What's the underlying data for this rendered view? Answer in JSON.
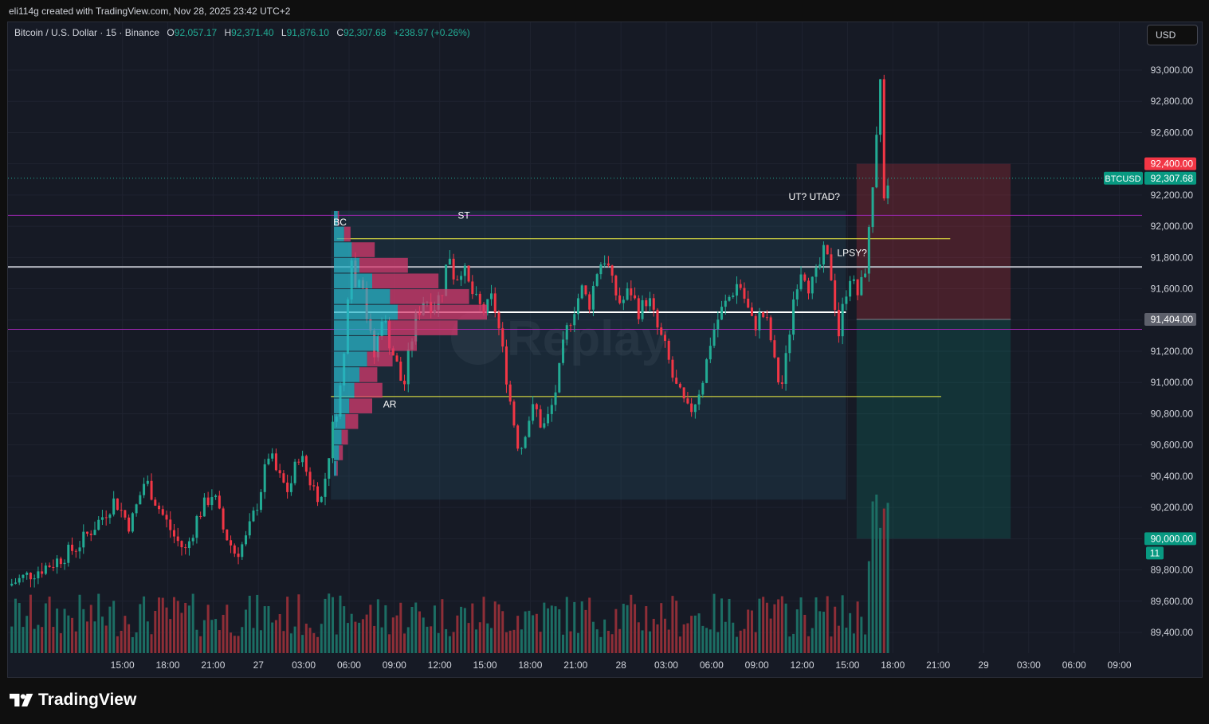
{
  "header": {
    "text": "eli114g created with TradingView.com, Nov 28, 2025 23:42 UTC+2"
  },
  "legend": {
    "symbol": "Bitcoin / U.S. Dollar · 15 · Binance",
    "open_label": "O",
    "open": "92,057.17",
    "high_label": "H",
    "high": "92,371.40",
    "low_label": "L",
    "low": "91,876.10",
    "close_label": "C",
    "close": "92,307.68",
    "change": "+238.97 (+0.26%)"
  },
  "currency_button": {
    "label": "USD"
  },
  "brand": {
    "name": "TradingView"
  },
  "colors": {
    "background": "#161a25",
    "up": "#22ab94",
    "down": "#f23645",
    "up_volume": "#1c6e64",
    "down_volume": "#8e2e37",
    "vp_up": "#2ab4c8",
    "vp_down": "#d63a6e",
    "purple_line": "#9c27b0",
    "yellow_line": "#f5f542",
    "white_line": "#e0e3eb"
  },
  "chart_data": {
    "type": "candlestick",
    "symbol": "BTCUSD",
    "interval": "15",
    "y_axis": {
      "range": [
        89250,
        93260
      ],
      "ticks": [
        "93,000.00",
        "92,800.00",
        "92,600.00",
        "92,400.00",
        "92,200.00",
        "92,000.00",
        "91,800.00",
        "91,600.00",
        "91,400.00",
        "91,200.00",
        "91,000.00",
        "90,800.00",
        "90,600.00",
        "90,400.00",
        "90,200.00",
        "90,000.00",
        "89,800.00",
        "89,600.00",
        "89,400.00"
      ],
      "tick_values": [
        93000,
        92800,
        92600,
        92400,
        92200,
        92000,
        91800,
        91600,
        91400,
        91200,
        91000,
        90800,
        90600,
        90400,
        90200,
        90000,
        89800,
        89600,
        89400
      ]
    },
    "x_axis": {
      "range_hours": [
        -16.58,
        58.5
      ],
      "ticks": [
        {
          "label": "15:00",
          "h": -9
        },
        {
          "label": "18:00",
          "h": -6
        },
        {
          "label": "21:00",
          "h": -3
        },
        {
          "label": "27",
          "h": 0
        },
        {
          "label": "03:00",
          "h": 3
        },
        {
          "label": "06:00",
          "h": 6
        },
        {
          "label": "09:00",
          "h": 9
        },
        {
          "label": "12:00",
          "h": 12
        },
        {
          "label": "15:00",
          "h": 15
        },
        {
          "label": "18:00",
          "h": 18
        },
        {
          "label": "21:00",
          "h": 21
        },
        {
          "label": "28",
          "h": 24
        },
        {
          "label": "03:00",
          "h": 27
        },
        {
          "label": "06:00",
          "h": 30
        },
        {
          "label": "09:00",
          "h": 33
        },
        {
          "label": "12:00",
          "h": 36
        },
        {
          "label": "15:00",
          "h": 39
        },
        {
          "label": "18:00",
          "h": 42
        },
        {
          "label": "21:00",
          "h": 45
        },
        {
          "label": "29",
          "h": 48
        },
        {
          "label": "03:00",
          "h": 51
        },
        {
          "label": "06:00",
          "h": 54
        },
        {
          "label": "09:00",
          "h": 57
        }
      ]
    },
    "price_path": [
      [
        -16.58,
        89700
      ],
      [
        -15,
        89780
      ],
      [
        -13.5,
        89850
      ],
      [
        -12,
        89950
      ],
      [
        -10.5,
        90120
      ],
      [
        -9.5,
        90250
      ],
      [
        -8.5,
        90080
      ],
      [
        -7.5,
        90380
      ],
      [
        -6.5,
        90180
      ],
      [
        -5.5,
        90000
      ],
      [
        -4.8,
        89920
      ],
      [
        -4,
        90150
      ],
      [
        -3,
        90300
      ],
      [
        -2.3,
        90050
      ],
      [
        -1.5,
        89900
      ],
      [
        -0.8,
        90000
      ],
      [
        0,
        90250
      ],
      [
        0.7,
        90550
      ],
      [
        1.3,
        90400
      ],
      [
        2,
        90300
      ],
      [
        2.7,
        90550
      ],
      [
        3.5,
        90350
      ],
      [
        4.2,
        90250
      ],
      [
        4.9,
        90700
      ],
      [
        5.4,
        90950
      ],
      [
        5.7,
        91200
      ],
      [
        6.1,
        91900
      ],
      [
        6.4,
        91600
      ],
      [
        6.8,
        91750
      ],
      [
        7.2,
        91400
      ],
      [
        7.7,
        91150
      ],
      [
        8.2,
        91450
      ],
      [
        8.7,
        91250
      ],
      [
        9.2,
        91100
      ],
      [
        9.6,
        90950
      ],
      [
        9.9,
        91150
      ],
      [
        10.4,
        91400
      ],
      [
        11,
        91550
      ],
      [
        11.6,
        91480
      ],
      [
        12.2,
        91600
      ],
      [
        12.6,
        91850
      ],
      [
        13,
        91650
      ],
      [
        13.5,
        91750
      ],
      [
        14,
        91600
      ],
      [
        14.5,
        91500
      ],
      [
        15,
        91450
      ],
      [
        15.5,
        91550
      ],
      [
        16,
        91300
      ],
      [
        16.4,
        91050
      ],
      [
        16.8,
        90800
      ],
      [
        17.3,
        90550
      ],
      [
        17.8,
        90750
      ],
      [
        18.3,
        90850
      ],
      [
        18.8,
        90700
      ],
      [
        19.3,
        90800
      ],
      [
        19.8,
        91000
      ],
      [
        20.3,
        91300
      ],
      [
        20.8,
        91450
      ],
      [
        21.4,
        91600
      ],
      [
        21.9,
        91500
      ],
      [
        22.5,
        91750
      ],
      [
        23,
        91800
      ],
      [
        23.5,
        91600
      ],
      [
        24,
        91500
      ],
      [
        24.6,
        91600
      ],
      [
        25.2,
        91450
      ],
      [
        25.8,
        91550
      ],
      [
        26.4,
        91350
      ],
      [
        27,
        91200
      ],
      [
        27.5,
        91000
      ],
      [
        28,
        90900
      ],
      [
        28.5,
        90800
      ],
      [
        29,
        90900
      ],
      [
        29.5,
        91050
      ],
      [
        30,
        91300
      ],
      [
        30.6,
        91450
      ],
      [
        31.2,
        91550
      ],
      [
        31.8,
        91650
      ],
      [
        32.3,
        91500
      ],
      [
        32.8,
        91350
      ],
      [
        33.3,
        91450
      ],
      [
        33.8,
        91350
      ],
      [
        34.2,
        91100
      ],
      [
        34.6,
        90950
      ],
      [
        35,
        91200
      ],
      [
        35.5,
        91600
      ],
      [
        36,
        91750
      ],
      [
        36.5,
        91600
      ],
      [
        37,
        91700
      ],
      [
        37.5,
        91850
      ],
      [
        38,
        91650
      ],
      [
        38.4,
        91300
      ],
      [
        38.8,
        91550
      ],
      [
        39.2,
        91700
      ],
      [
        39.6,
        91550
      ],
      [
        40,
        91650
      ],
      [
        40.3,
        91800
      ],
      [
        40.6,
        92200
      ],
      [
        40.9,
        92550
      ],
      [
        41.2,
        92990
      ],
      [
        41.45,
        92100
      ],
      [
        41.6,
        92250
      ],
      [
        41.7,
        92307
      ]
    ],
    "last_price_label": "BTCUSD",
    "last_price": "92,307.68",
    "last_price_value": 92307.68,
    "levels": {
      "purple_upper": 92070,
      "purple_lower": 91340,
      "white_upper": 91740,
      "white_lower": 91450,
      "yellow_upper": 91920,
      "yellow_lower": 90910
    },
    "range_box": {
      "from_h": 4.8,
      "to_h": 38.9,
      "top": 92100,
      "bottom": 90250
    },
    "position": {
      "from_h": 39.6,
      "to_h": 49.8,
      "stop": 92400,
      "entry": 91404,
      "target": 90000,
      "stop_label": "92,400.00",
      "entry_label": "91,404.00",
      "target_label": "90,000.00",
      "qty_label": "11"
    },
    "annotations": [
      {
        "text": "BC",
        "h": 5.4,
        "price": 92005
      },
      {
        "text": "ST",
        "h": 13.6,
        "price": 92050
      },
      {
        "text": "AR",
        "h": 8.7,
        "price": 90840
      },
      {
        "text": "UT? UTAD?",
        "h": 36.8,
        "price": 92170
      },
      {
        "text": "LPSY?",
        "h": 39.3,
        "price": 91810
      }
    ],
    "volume_profile": {
      "anchor_h": 5.0,
      "rows": [
        {
          "low": 92000,
          "high": 92100,
          "up": 3,
          "down": 1
        },
        {
          "low": 91900,
          "high": 92000,
          "up": 8,
          "down": 5
        },
        {
          "low": 91800,
          "high": 91900,
          "up": 14,
          "down": 18
        },
        {
          "low": 91700,
          "high": 91800,
          "up": 20,
          "down": 38
        },
        {
          "low": 91600,
          "high": 91700,
          "up": 30,
          "down": 52
        },
        {
          "low": 91500,
          "high": 91600,
          "up": 44,
          "down": 62
        },
        {
          "low": 91400,
          "high": 91500,
          "up": 50,
          "down": 70
        },
        {
          "low": 91300,
          "high": 91400,
          "up": 42,
          "down": 55
        },
        {
          "low": 91200,
          "high": 91300,
          "up": 35,
          "down": 30
        },
        {
          "low": 91100,
          "high": 91200,
          "up": 26,
          "down": 20
        },
        {
          "low": 91000,
          "high": 91100,
          "up": 20,
          "down": 14
        },
        {
          "low": 90900,
          "high": 91000,
          "up": 16,
          "down": 22
        },
        {
          "low": 90800,
          "high": 90900,
          "up": 12,
          "down": 18
        },
        {
          "low": 90700,
          "high": 90800,
          "up": 9,
          "down": 10
        },
        {
          "low": 90600,
          "high": 90700,
          "up": 6,
          "down": 5
        },
        {
          "low": 90500,
          "high": 90600,
          "up": 4,
          "down": 3
        },
        {
          "low": 90400,
          "high": 90500,
          "up": 2,
          "down": 1
        }
      ]
    }
  }
}
